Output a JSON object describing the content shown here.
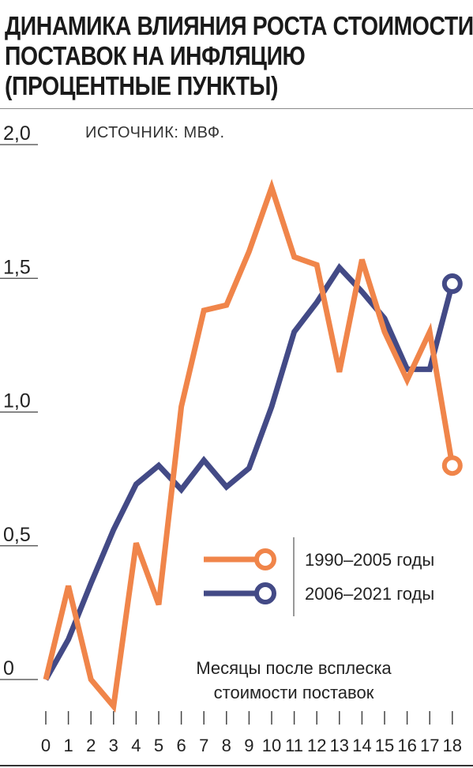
{
  "title_lines": [
    "ДИНАМИКА ВЛИЯНИЯ РОСТА СТОИМОСТИ",
    "ПОСТАВОК НА ИНФЛЯЦИЮ",
    "(ПРОЦЕНТНЫЕ ПУНКТЫ)"
  ],
  "source": "ИСТОЧНИК: МВФ.",
  "colors": {
    "orange": "#F0854A",
    "navy": "#434A86",
    "text": "#222222",
    "axis": "#444444"
  },
  "chart_data": {
    "type": "line",
    "y_tick_labels": [
      "0",
      "0,5",
      "1,0",
      "1,5",
      "2,0"
    ],
    "y_ticks": [
      0,
      0.5,
      1.0,
      1.5,
      2.0
    ],
    "ylim": [
      0,
      2.0
    ],
    "x": [
      0,
      1,
      2,
      3,
      4,
      5,
      6,
      7,
      8,
      9,
      10,
      11,
      12,
      13,
      14,
      15,
      16,
      17,
      18
    ],
    "x_tick_labels": [
      "0",
      "1",
      "2",
      "3",
      "4",
      "5",
      "6",
      "7",
      "8",
      "9",
      "10",
      "11",
      "12",
      "13",
      "14",
      "15",
      "16",
      "17",
      "18"
    ],
    "annotation_lines": [
      "Месяцы после всплеска",
      "стоимости поставок"
    ],
    "series": [
      {
        "name": "1990–2005 годы",
        "color": "#F0854A",
        "values": [
          0.0,
          0.35,
          0.0,
          -0.1,
          0.51,
          0.28,
          1.02,
          1.38,
          1.4,
          1.6,
          1.84,
          1.58,
          1.55,
          1.15,
          1.57,
          1.3,
          1.12,
          1.3,
          0.8
        ]
      },
      {
        "name": "2006–2021 годы",
        "color": "#434A86",
        "values": [
          0.0,
          0.15,
          0.36,
          0.56,
          0.73,
          0.8,
          0.71,
          0.82,
          0.72,
          0.79,
          1.02,
          1.3,
          1.41,
          1.54,
          1.45,
          1.35,
          1.16,
          1.16,
          1.48
        ]
      }
    ],
    "legend_position": "middle-right"
  }
}
